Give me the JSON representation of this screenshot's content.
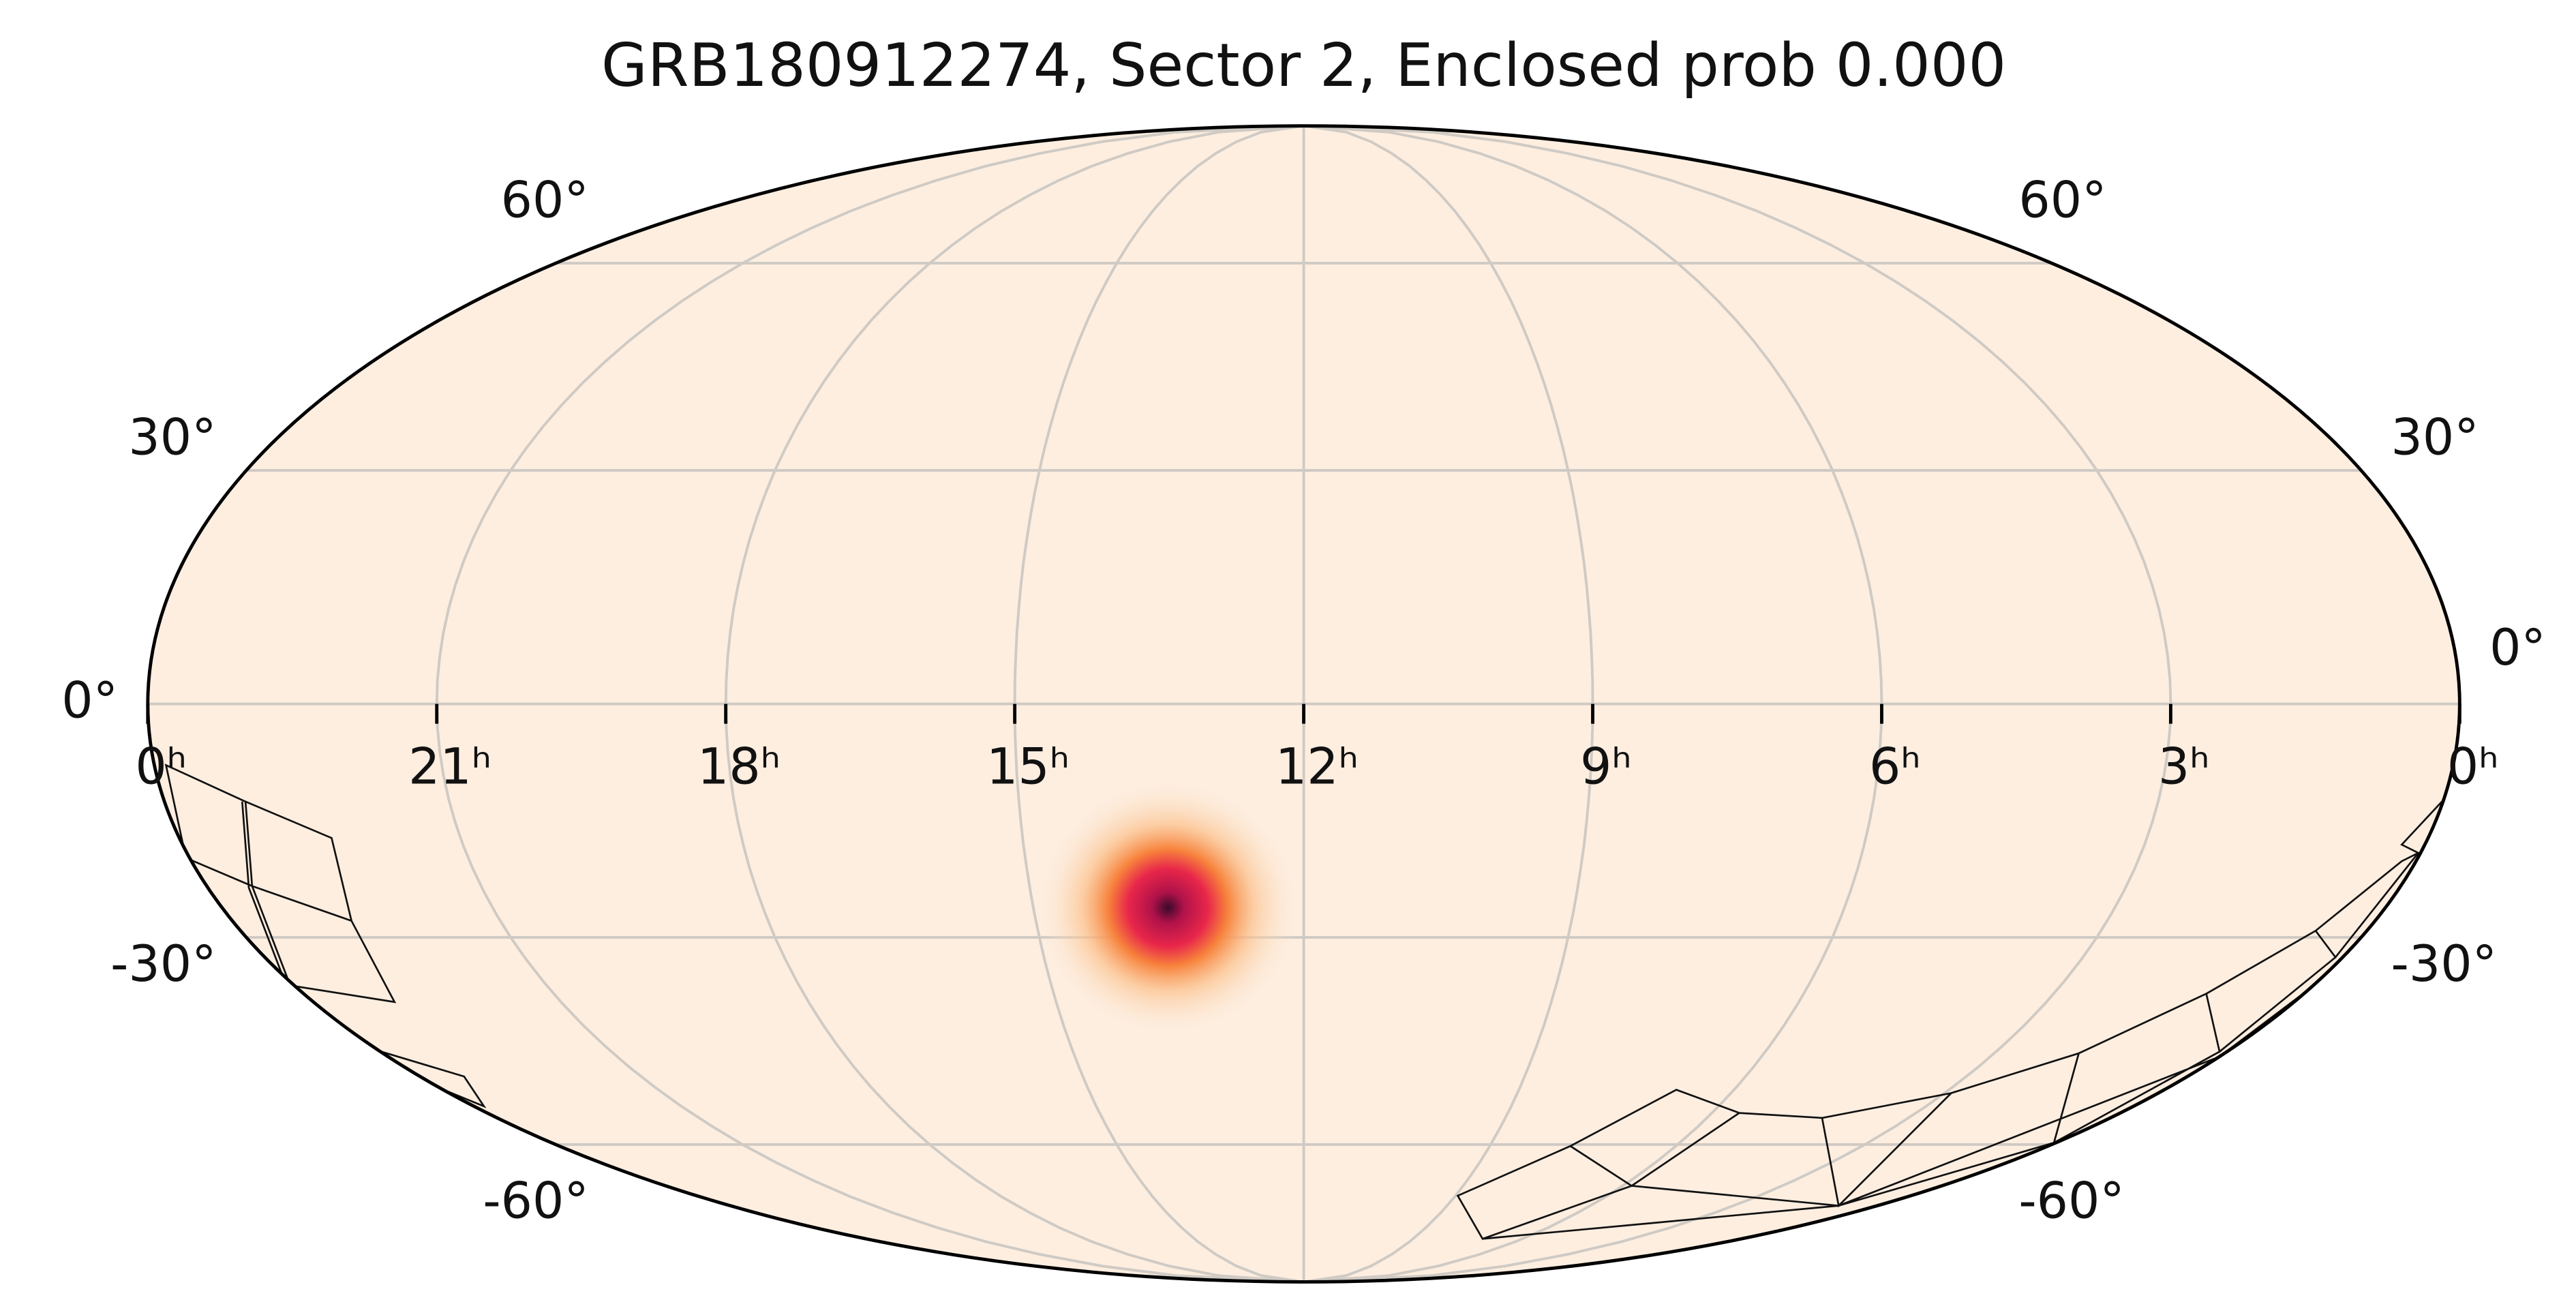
{
  "chart_data": {
    "type": "mollweide",
    "title": "GRB180912274, Sector 2, Enclosed prob 0.000",
    "xlim": [
      24,
      0
    ],
    "ylim": [
      -90,
      90
    ],
    "xticks": [
      {
        "value": 24,
        "label": "0ʰ"
      },
      {
        "value": 21,
        "label": "21ʰ"
      },
      {
        "value": 18,
        "label": "18ʰ"
      },
      {
        "value": 15,
        "label": "15ʰ"
      },
      {
        "value": 12,
        "label": "12ʰ"
      },
      {
        "value": 9,
        "label": "9ʰ"
      },
      {
        "value": 6,
        "label": "6ʰ"
      },
      {
        "value": 3,
        "label": "3ʰ"
      },
      {
        "value": 0,
        "label": "0ʰ"
      }
    ],
    "yticks": [
      {
        "value": -60,
        "label": "-60°"
      },
      {
        "value": -30,
        "label": "-30°"
      },
      {
        "value": 0,
        "label": "0°"
      },
      {
        "value": 30,
        "label": "30°"
      },
      {
        "value": 60,
        "label": "60°"
      }
    ],
    "grid": true,
    "background": "#fdeee0"
  }
}
